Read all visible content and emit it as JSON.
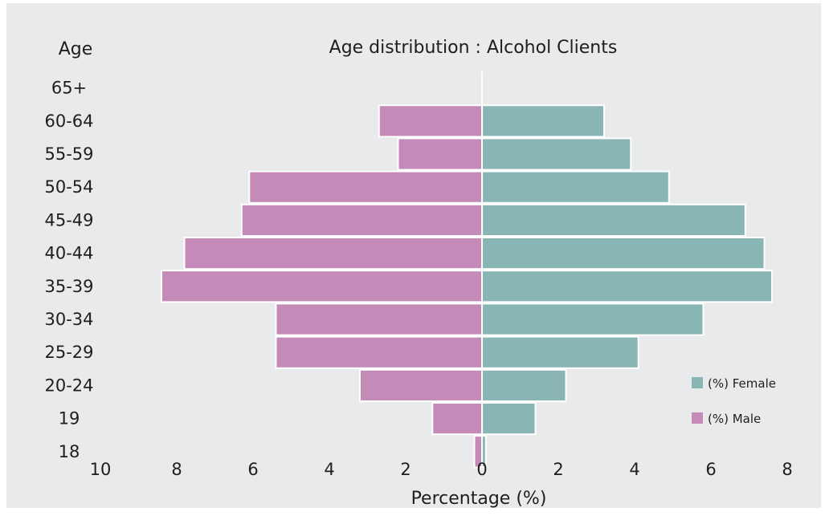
{
  "chart_data": {
    "type": "bar",
    "orientation": "horizontal",
    "subtype": "population-pyramid",
    "title": "Age distribution : Alcohol Clients",
    "ylabel": "Age",
    "xlabel": "Percentage (%)",
    "categories": [
      "18",
      "19",
      "20-24",
      "25-29",
      "30-34",
      "35-39",
      "40-44",
      "45-49",
      "50-54",
      "55-59",
      "60-64",
      "65+"
    ],
    "series": [
      {
        "name": "(%) Female",
        "side": "right",
        "color": "#8ab5b5",
        "values": [
          0.1,
          1.4,
          2.2,
          4.1,
          5.8,
          7.6,
          7.4,
          6.9,
          4.9,
          3.9,
          3.2,
          0
        ]
      },
      {
        "name": "(%) Male",
        "side": "left",
        "color": "#c48ab8",
        "values": [
          0.2,
          1.3,
          3.2,
          5.4,
          5.4,
          8.4,
          7.8,
          6.3,
          6.1,
          2.2,
          2.7,
          0
        ]
      }
    ],
    "xlim": [
      -10,
      8
    ],
    "x_ticks": [
      {
        "value": -10,
        "label": "10"
      },
      {
        "value": -8,
        "label": "8"
      },
      {
        "value": -6,
        "label": "6"
      },
      {
        "value": -4,
        "label": "4"
      },
      {
        "value": -2,
        "label": "2"
      },
      {
        "value": 0,
        "label": "0"
      },
      {
        "value": 2,
        "label": "2"
      },
      {
        "value": 4,
        "label": "4"
      },
      {
        "value": 6,
        "label": "6"
      },
      {
        "value": 8,
        "label": "8"
      }
    ],
    "legend_position": "bottom-right",
    "grid": false,
    "background_color": "#e9eaeb"
  }
}
